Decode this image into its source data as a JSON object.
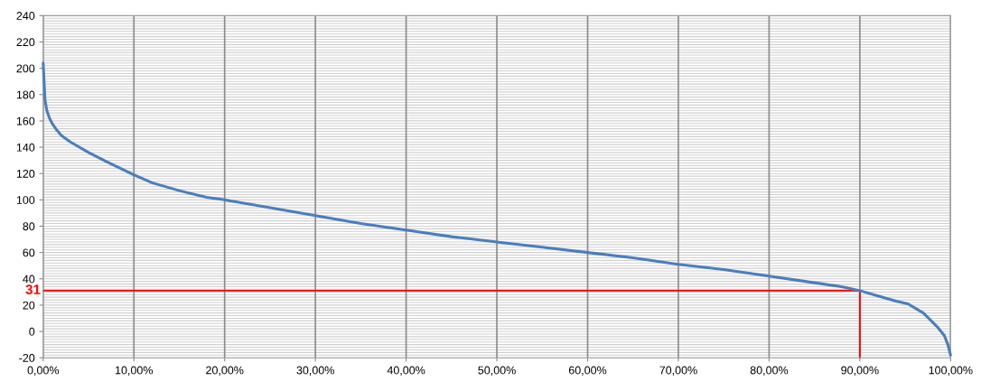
{
  "chart_data": {
    "type": "line",
    "series": [
      {
        "color": "#4a7ebb",
        "x": [
          0,
          0.1,
          0.2,
          0.4,
          0.7,
          1,
          1.5,
          2,
          3,
          4,
          5,
          7,
          10,
          12,
          15,
          18,
          20,
          25,
          30,
          35,
          40,
          45,
          50,
          55,
          60,
          65,
          70,
          75,
          80,
          85,
          88,
          90,
          92,
          94,
          95.3,
          97,
          98.6,
          99.3,
          99.7,
          100
        ],
        "values": [
          204,
          190,
          176,
          168,
          162,
          158,
          153,
          149,
          144,
          140,
          136,
          129,
          119,
          113,
          107,
          102,
          100,
          94,
          88,
          82,
          77,
          72,
          68,
          64,
          60,
          56,
          51,
          47,
          42,
          37,
          34,
          31,
          27,
          23,
          21,
          14,
          3,
          -3,
          -10,
          -18
        ]
      },
      {
        "type": "line",
        "color": "#ff0000",
        "x": [
          0,
          90,
          90
        ],
        "values": [
          31,
          31,
          -20
        ]
      }
    ],
    "annotations": [
      {
        "text": "31",
        "x": 0,
        "y": 31
      }
    ],
    "xlim": [
      0,
      100
    ],
    "xticks": [
      {
        "value": 0,
        "label": "0,00%"
      },
      {
        "value": 10,
        "label": "10,00%"
      },
      {
        "value": 20,
        "label": "20,00%"
      },
      {
        "value": 30,
        "label": "30,00%"
      },
      {
        "value": 40,
        "label": "40,00%"
      },
      {
        "value": 50,
        "label": "50,00%"
      },
      {
        "value": 60,
        "label": "60,00%"
      },
      {
        "value": 70,
        "label": "70,00%"
      },
      {
        "value": 80,
        "label": "80,00%"
      },
      {
        "value": 90,
        "label": "90,00%"
      },
      {
        "value": 100,
        "label": "100,00%"
      }
    ],
    "ylim": [
      -20,
      240
    ],
    "yticks": [
      -20,
      0,
      20,
      40,
      60,
      80,
      100,
      120,
      140,
      160,
      180,
      200,
      220,
      240
    ],
    "grid": true,
    "legend": false
  }
}
